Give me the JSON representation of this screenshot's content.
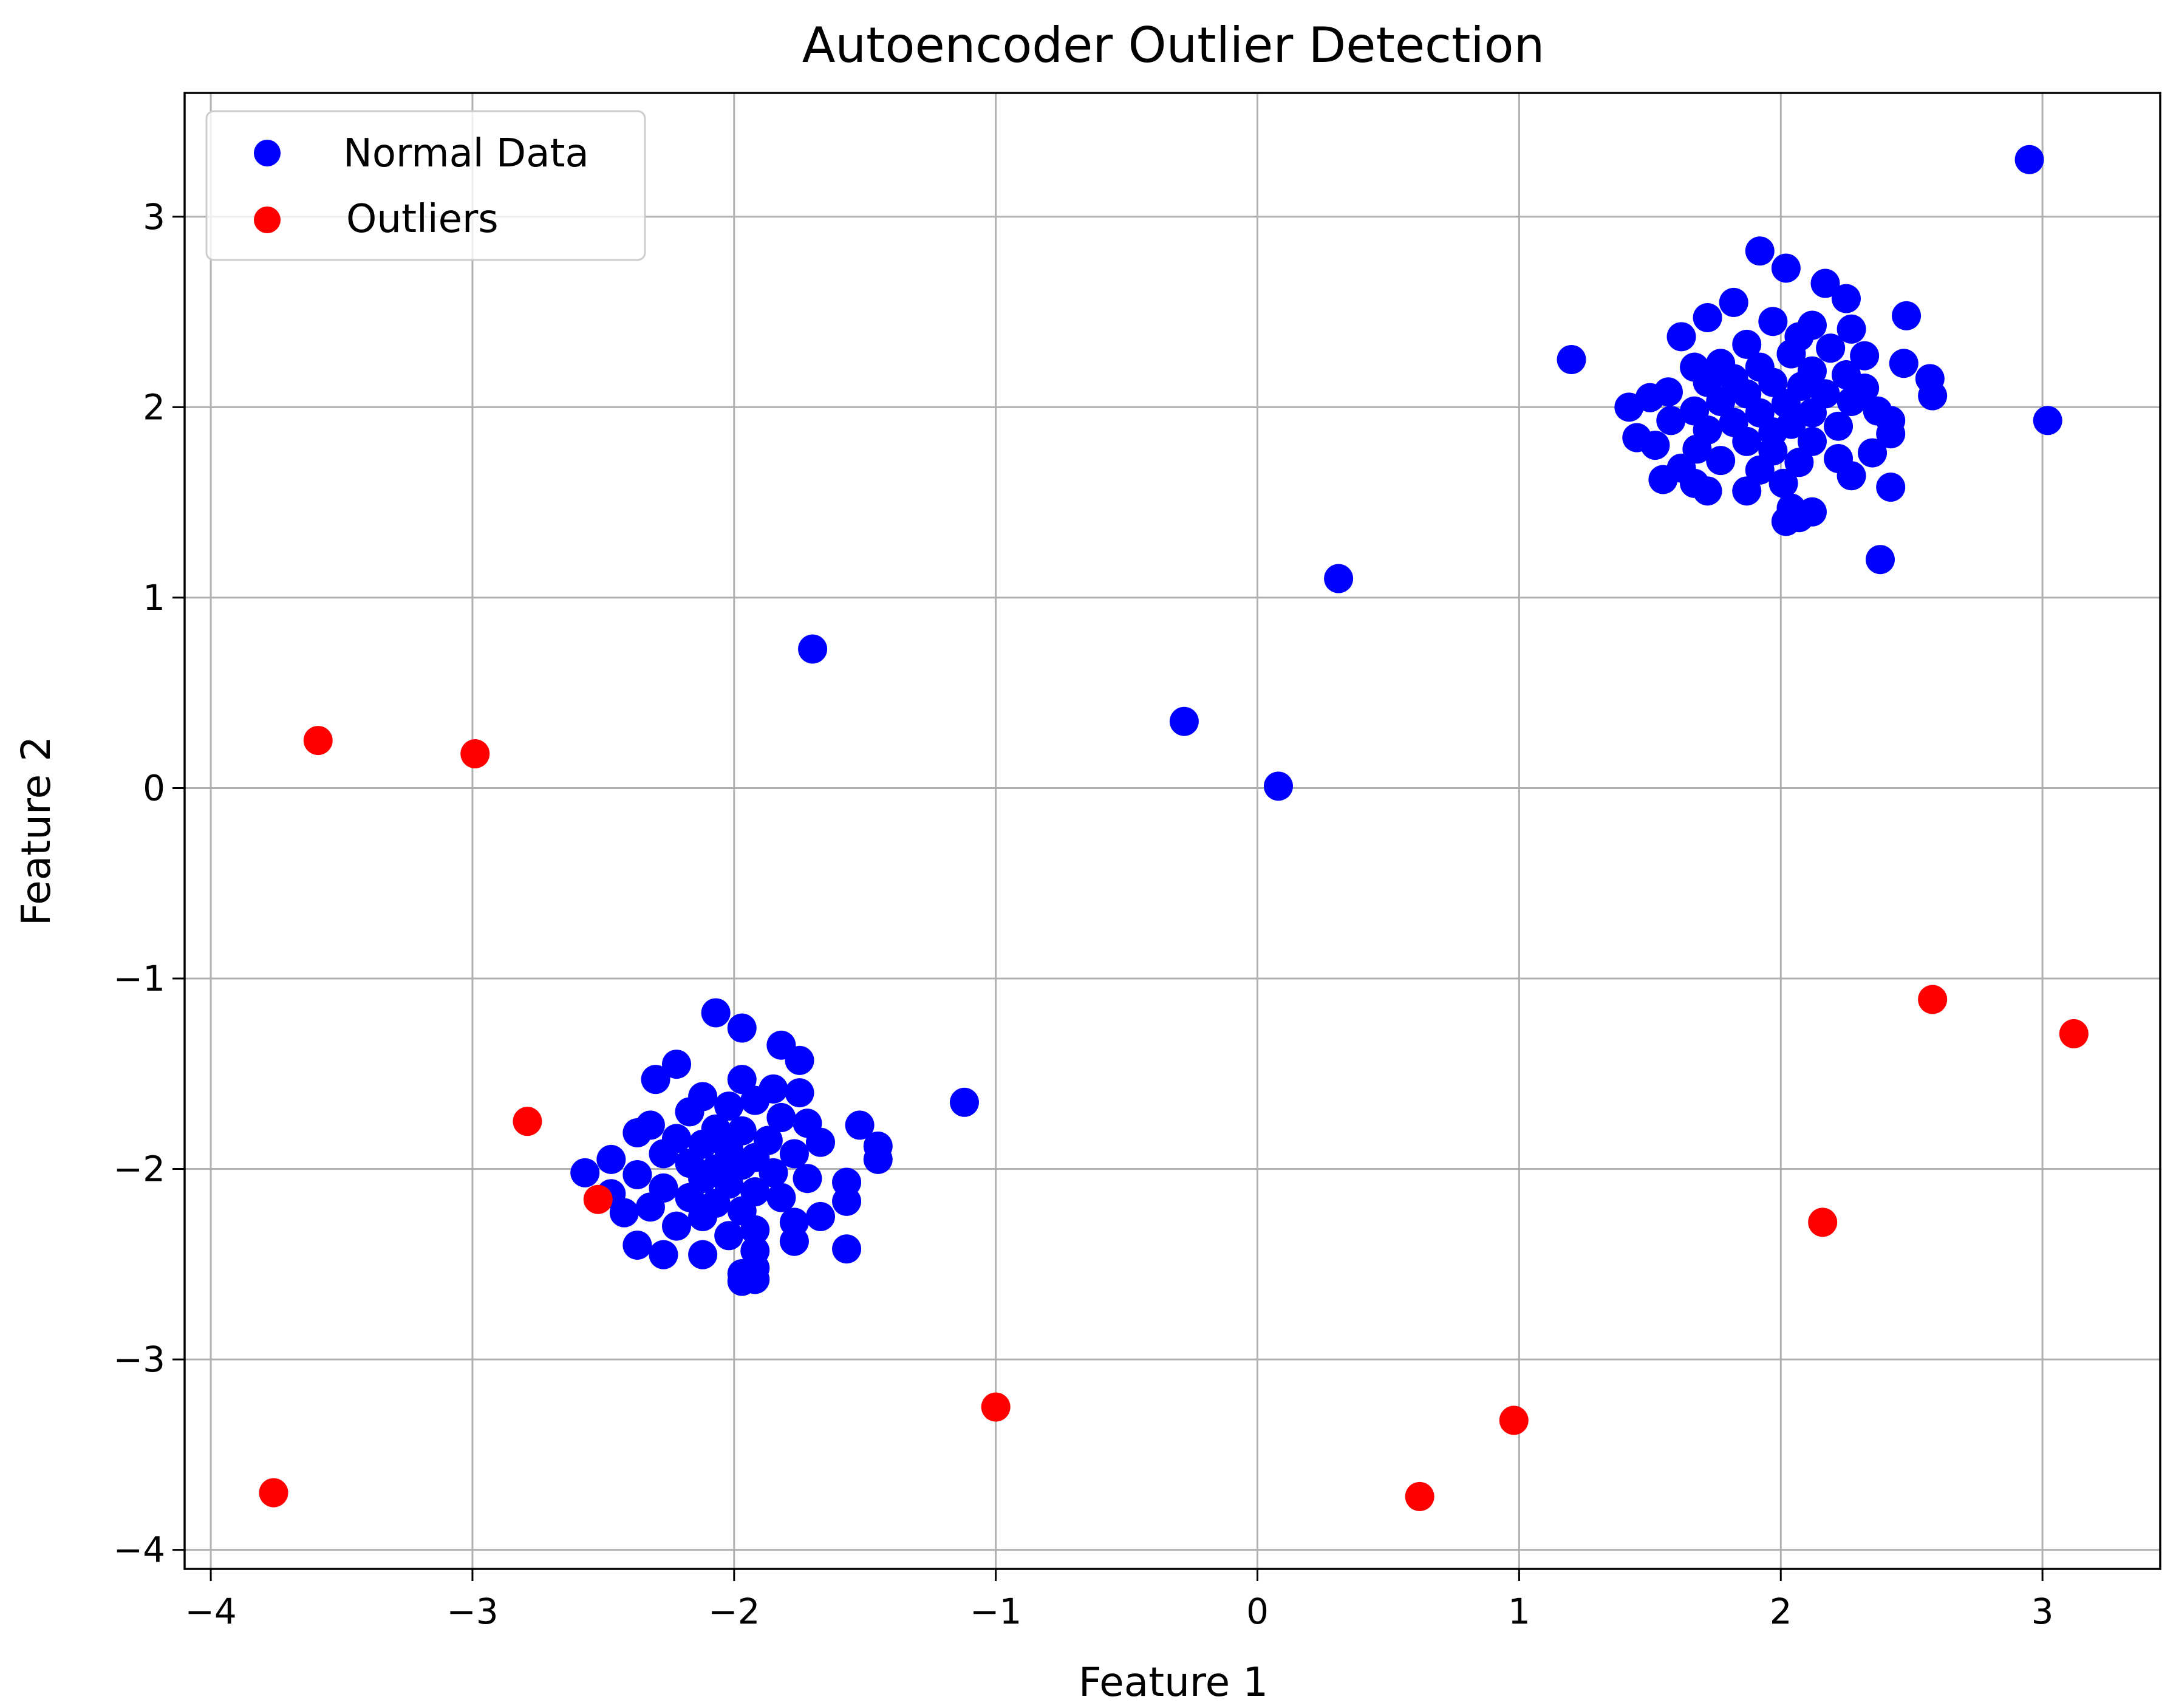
{
  "chart_data": {
    "type": "scatter",
    "title": "Autoencoder Outlier Detection",
    "xlabel": "Feature 1",
    "ylabel": "Feature 2",
    "xlim": [
      -4.1,
      3.45
    ],
    "ylim": [
      -4.1,
      3.65
    ],
    "xticks": [
      -4,
      -3,
      -2,
      -1,
      0,
      1,
      2,
      3
    ],
    "yticks": [
      -4,
      -3,
      -2,
      -1,
      0,
      1,
      2,
      3
    ],
    "xtick_labels": [
      "−4",
      "−3",
      "−2",
      "−1",
      "0",
      "1",
      "2",
      "3"
    ],
    "ytick_labels": [
      "−4",
      "−3",
      "−2",
      "−1",
      "0",
      "1",
      "2",
      "3"
    ],
    "grid": true,
    "legend_position": "top-left",
    "series": [
      {
        "name": "Normal Data",
        "color": "#0000ff",
        "points": [
          [
            2.95,
            3.3
          ],
          [
            3.02,
            1.93
          ],
          [
            1.2,
            2.25
          ],
          [
            0.31,
            1.1
          ],
          [
            -0.28,
            0.35
          ],
          [
            0.08,
            0.01
          ],
          [
            -1.7,
            0.73
          ],
          [
            -1.12,
            -1.65
          ],
          [
            1.92,
            2.82
          ],
          [
            2.02,
            2.73
          ],
          [
            2.17,
            2.65
          ],
          [
            2.25,
            2.57
          ],
          [
            1.82,
            2.55
          ],
          [
            1.72,
            2.47
          ],
          [
            2.48,
            2.48
          ],
          [
            1.97,
            2.45
          ],
          [
            2.12,
            2.43
          ],
          [
            2.27,
            2.41
          ],
          [
            1.62,
            2.37
          ],
          [
            2.07,
            2.37
          ],
          [
            1.87,
            2.33
          ],
          [
            2.19,
            2.31
          ],
          [
            2.32,
            2.27
          ],
          [
            2.04,
            2.28
          ],
          [
            1.77,
            2.23
          ],
          [
            1.67,
            2.21
          ],
          [
            2.47,
            2.23
          ],
          [
            1.92,
            2.21
          ],
          [
            2.12,
            2.19
          ],
          [
            2.25,
            2.17
          ],
          [
            1.82,
            2.15
          ],
          [
            2.57,
            2.15
          ],
          [
            1.72,
            2.13
          ],
          [
            1.97,
            2.13
          ],
          [
            2.08,
            2.11
          ],
          [
            2.32,
            2.1
          ],
          [
            1.57,
            2.08
          ],
          [
            1.87,
            2.07
          ],
          [
            2.17,
            2.07
          ],
          [
            2.58,
            2.06
          ],
          [
            1.5,
            2.05
          ],
          [
            1.77,
            2.03
          ],
          [
            2.02,
            2.02
          ],
          [
            2.27,
            2.03
          ],
          [
            1.42,
            2.0
          ],
          [
            1.67,
            1.98
          ],
          [
            1.92,
            1.97
          ],
          [
            2.12,
            1.97
          ],
          [
            2.37,
            1.98
          ],
          [
            2.42,
            1.93
          ],
          [
            1.58,
            1.93
          ],
          [
            1.82,
            1.92
          ],
          [
            2.04,
            1.91
          ],
          [
            2.22,
            1.9
          ],
          [
            1.72,
            1.88
          ],
          [
            1.97,
            1.87
          ],
          [
            2.42,
            1.86
          ],
          [
            1.45,
            1.84
          ],
          [
            1.87,
            1.82
          ],
          [
            2.12,
            1.82
          ],
          [
            1.52,
            1.8
          ],
          [
            1.68,
            1.78
          ],
          [
            1.97,
            1.77
          ],
          [
            2.35,
            1.76
          ],
          [
            2.22,
            1.73
          ],
          [
            1.77,
            1.72
          ],
          [
            2.07,
            1.71
          ],
          [
            1.62,
            1.68
          ],
          [
            1.92,
            1.67
          ],
          [
            2.27,
            1.64
          ],
          [
            1.55,
            1.62
          ],
          [
            1.67,
            1.6
          ],
          [
            2.01,
            1.6
          ],
          [
            1.72,
            1.56
          ],
          [
            1.87,
            1.56
          ],
          [
            2.42,
            1.58
          ],
          [
            2.04,
            1.47
          ],
          [
            2.12,
            1.45
          ],
          [
            2.07,
            1.42
          ],
          [
            2.02,
            1.4
          ],
          [
            2.38,
            1.2
          ],
          [
            -2.07,
            -1.18
          ],
          [
            -1.97,
            -1.26
          ],
          [
            -1.82,
            -1.35
          ],
          [
            -1.75,
            -1.43
          ],
          [
            -2.22,
            -1.45
          ],
          [
            -2.3,
            -1.53
          ],
          [
            -1.97,
            -1.53
          ],
          [
            -1.85,
            -1.58
          ],
          [
            -1.75,
            -1.6
          ],
          [
            -2.12,
            -1.62
          ],
          [
            -1.92,
            -1.64
          ],
          [
            -2.02,
            -1.67
          ],
          [
            -2.17,
            -1.7
          ],
          [
            -1.82,
            -1.73
          ],
          [
            -1.72,
            -1.76
          ],
          [
            -1.52,
            -1.77
          ],
          [
            -2.32,
            -1.77
          ],
          [
            -2.07,
            -1.79
          ],
          [
            -1.97,
            -1.8
          ],
          [
            -2.37,
            -1.81
          ],
          [
            -2.22,
            -1.84
          ],
          [
            -1.87,
            -1.85
          ],
          [
            -1.67,
            -1.86
          ],
          [
            -2.12,
            -1.87
          ],
          [
            -1.45,
            -1.88
          ],
          [
            -2.02,
            -1.9
          ],
          [
            -1.77,
            -1.92
          ],
          [
            -2.27,
            -1.92
          ],
          [
            -1.92,
            -1.94
          ],
          [
            -2.47,
            -1.95
          ],
          [
            -1.45,
            -1.95
          ],
          [
            -2.17,
            -1.97
          ],
          [
            -1.97,
            -1.98
          ],
          [
            -2.07,
            -2.0
          ],
          [
            -2.57,
            -2.02
          ],
          [
            -1.85,
            -2.02
          ],
          [
            -2.37,
            -2.03
          ],
          [
            -2.12,
            -2.05
          ],
          [
            -1.72,
            -2.05
          ],
          [
            -1.57,
            -2.07
          ],
          [
            -2.02,
            -2.08
          ],
          [
            -2.27,
            -2.1
          ],
          [
            -1.92,
            -2.12
          ],
          [
            -2.47,
            -2.13
          ],
          [
            -2.17,
            -2.15
          ],
          [
            -1.82,
            -2.15
          ],
          [
            -1.57,
            -2.17
          ],
          [
            -2.07,
            -2.18
          ],
          [
            -2.32,
            -2.2
          ],
          [
            -1.97,
            -2.22
          ],
          [
            -2.42,
            -2.23
          ],
          [
            -2.12,
            -2.25
          ],
          [
            -1.67,
            -2.25
          ],
          [
            -1.77,
            -2.28
          ],
          [
            -2.22,
            -2.3
          ],
          [
            -1.92,
            -2.32
          ],
          [
            -2.02,
            -2.35
          ],
          [
            -1.77,
            -2.38
          ],
          [
            -2.37,
            -2.4
          ],
          [
            -1.57,
            -2.42
          ],
          [
            -1.92,
            -2.43
          ],
          [
            -2.27,
            -2.45
          ],
          [
            -2.12,
            -2.45
          ],
          [
            -1.92,
            -2.52
          ],
          [
            -1.97,
            -2.55
          ],
          [
            -1.97,
            -2.59
          ],
          [
            -1.92,
            -2.58
          ]
        ]
      },
      {
        "name": "Outliers",
        "color": "#ff0000",
        "points": [
          [
            -3.59,
            0.25
          ],
          [
            -2.99,
            0.18
          ],
          [
            -2.79,
            -1.75
          ],
          [
            -2.52,
            -2.16
          ],
          [
            -3.76,
            -3.7
          ],
          [
            -1.0,
            -3.25
          ],
          [
            0.62,
            -3.72
          ],
          [
            0.98,
            -3.32
          ],
          [
            2.16,
            -2.28
          ],
          [
            2.58,
            -1.11
          ],
          [
            3.12,
            -1.29
          ]
        ]
      }
    ]
  }
}
